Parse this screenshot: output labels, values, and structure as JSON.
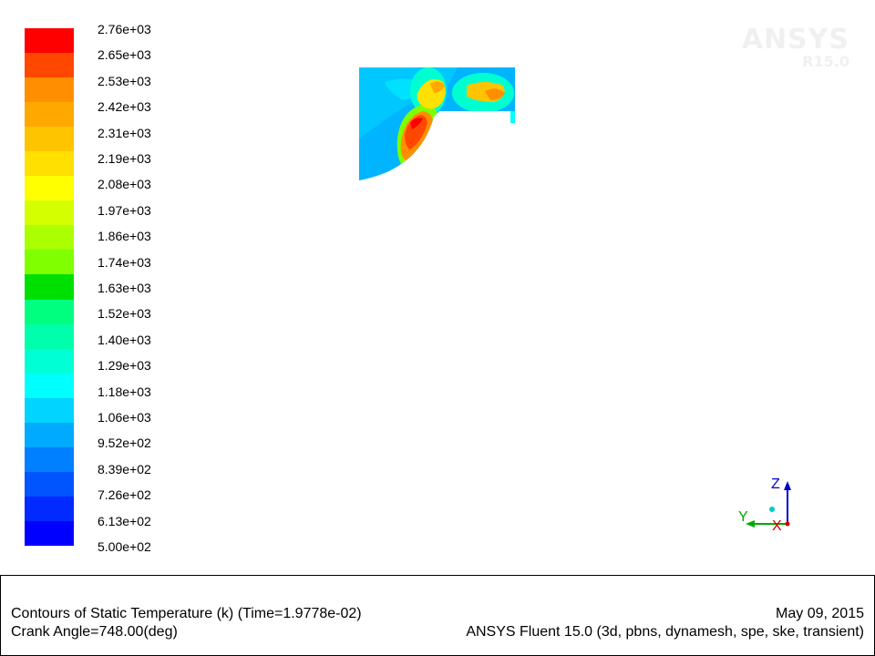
{
  "legend": {
    "labels": [
      "2.76e+03",
      "2.65e+03",
      "2.53e+03",
      "2.42e+03",
      "2.31e+03",
      "2.19e+03",
      "2.08e+03",
      "1.97e+03",
      "1.86e+03",
      "1.74e+03",
      "1.63e+03",
      "1.52e+03",
      "1.40e+03",
      "1.29e+03",
      "1.18e+03",
      "1.06e+03",
      "9.52e+02",
      "8.39e+02",
      "7.26e+02",
      "6.13e+02",
      "5.00e+02"
    ],
    "colors": [
      "#ff0000",
      "#ff4700",
      "#ff8e00",
      "#ffa800",
      "#ffc400",
      "#ffe000",
      "#ffff00",
      "#d4ff00",
      "#aaff00",
      "#7fff00",
      "#00e000",
      "#00ff7f",
      "#00ffaa",
      "#00ffd4",
      "#00ffff",
      "#00d4ff",
      "#00aaff",
      "#007fff",
      "#0055ff",
      "#002aff",
      "#0000ff"
    ]
  },
  "watermark": {
    "brand": "ANSYS",
    "version": "R15.0"
  },
  "axes": {
    "z": "Z",
    "y": "Y",
    "x": "X"
  },
  "caption": {
    "title": "Contours of Static Temperature (k)  (Time=1.9778e-02)",
    "date": "May 09, 2015",
    "crank_angle": "Crank Angle=748.00(deg)",
    "solver": "ANSYS Fluent 15.0 (3d, pbns, dynamesh, spe, ske, transient)"
  }
}
